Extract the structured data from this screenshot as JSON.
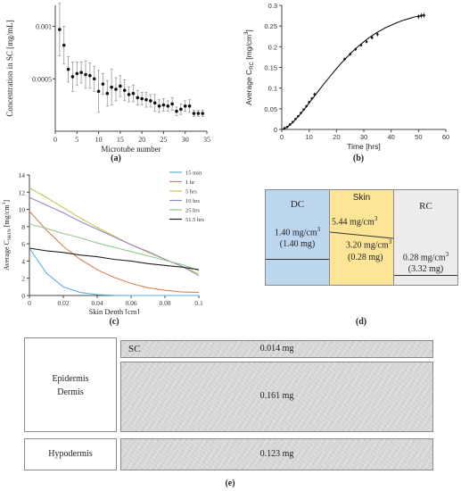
{
  "chart_data": [
    {
      "type": "scatter",
      "panel": "(a)",
      "xlabel": "Microtube number",
      "ylabel": "Concentration in SC [mg/mL]",
      "xlim": [
        0,
        35
      ],
      "ylim": [
        0,
        0.0012
      ],
      "xticks": [
        0,
        5,
        10,
        15,
        20,
        25,
        30,
        35
      ],
      "yticks": [
        0.0005,
        0.001
      ],
      "ytick_labels": [
        "0.0005",
        "0.001"
      ],
      "x": [
        1,
        2,
        3,
        4,
        5,
        6,
        7,
        8,
        9,
        10,
        11,
        12,
        13,
        14,
        15,
        16,
        17,
        18,
        19,
        20,
        21,
        22,
        23,
        24,
        25,
        26,
        27,
        28,
        29,
        30,
        31,
        32,
        33,
        34
      ],
      "y": [
        0.00097,
        0.00082,
        0.00059,
        0.00052,
        0.00055,
        0.00056,
        0.00054,
        0.00053,
        0.0005,
        0.00038,
        0.00045,
        0.00036,
        0.00042,
        0.0004,
        0.00043,
        0.00039,
        0.00035,
        0.00036,
        0.00032,
        0.00031,
        0.0003,
        0.00029,
        0.00027,
        0.00024,
        0.00025,
        0.00024,
        0.00026,
        0.00019,
        0.00021,
        0.00024,
        0.00024,
        0.00017,
        0.00017,
        0.00017
      ],
      "err": [
        0.00025,
        0.00018,
        0.00012,
        0.00014,
        0.00011,
        0.0001,
        0.00013,
        0.00012,
        0.00012,
        0.0002,
        0.0001,
        0.00012,
        0.00017,
        0.00011,
        0.0001,
        0.0001,
        7e-05,
        8e-05,
        7e-05,
        6e-05,
        7e-05,
        6e-05,
        8e-05,
        6e-05,
        6e-05,
        5e-05,
        6e-05,
        4e-05,
        5e-05,
        5e-05,
        6e-05,
        3e-05,
        3e-05,
        3e-05
      ]
    },
    {
      "type": "line",
      "panel": "(b)",
      "xlabel": "Time  [hrs]",
      "ylabel_main": "Average C",
      "ylabel_sub": "RC",
      "ylabel_unit": "[mg/cm",
      "ylabel_sup": "3",
      "ylabel_end": "]",
      "xlim": [
        0,
        60
      ],
      "ylim": [
        0,
        0.3
      ],
      "xticks": [
        0,
        10,
        20,
        30,
        40,
        50,
        60
      ],
      "yticks": [
        0,
        0.05,
        0.1,
        0.15,
        0.2,
        0.25,
        0.3
      ],
      "ytick_labels": [
        "0",
        "0.05",
        "0.1",
        "0.15",
        "0.2",
        "0.25",
        "0.3"
      ],
      "fit_x": [
        0,
        1,
        2,
        3,
        4,
        5,
        6,
        7,
        8,
        9,
        10,
        12,
        14,
        16,
        18,
        20,
        22,
        24,
        26,
        28,
        30,
        32,
        34,
        36,
        38,
        40,
        42,
        44,
        46,
        48,
        50,
        52
      ],
      "fit_y": [
        0,
        0.002,
        0.006,
        0.011,
        0.017,
        0.024,
        0.031,
        0.039,
        0.047,
        0.055,
        0.064,
        0.081,
        0.098,
        0.115,
        0.131,
        0.147,
        0.162,
        0.176,
        0.189,
        0.201,
        0.212,
        0.222,
        0.231,
        0.239,
        0.246,
        0.252,
        0.258,
        0.263,
        0.267,
        0.271,
        0.274,
        0.277
      ],
      "points_x": [
        1,
        2,
        3,
        4,
        5,
        6,
        7,
        8,
        9,
        10,
        11,
        12,
        23,
        25,
        27,
        29,
        31,
        33,
        35,
        50,
        51,
        52
      ],
      "points_y": [
        0.003,
        0.006,
        0.012,
        0.018,
        0.025,
        0.032,
        0.04,
        0.048,
        0.056,
        0.066,
        0.075,
        0.085,
        0.17,
        0.182,
        0.194,
        0.204,
        0.212,
        0.222,
        0.23,
        0.273,
        0.275,
        0.276
      ],
      "points_err": [
        0.001,
        0.001,
        0.001,
        0.002,
        0.002,
        0.002,
        0.002,
        0.003,
        0.003,
        0.003,
        0.003,
        0.004,
        0.004,
        0.004,
        0.004,
        0.004,
        0.004,
        0.004,
        0.005,
        0.006,
        0.006,
        0.006
      ]
    },
    {
      "type": "line",
      "panel": "(c)",
      "xlabel": "Skin Depth [cm]",
      "ylabel_main": "Average C",
      "ylabel_sub": "SKIN",
      "ylabel_unit": "[mg/cm",
      "ylabel_sup": "3",
      "ylabel_end": "]",
      "xlim": [
        0,
        0.1
      ],
      "ylim": [
        0,
        14
      ],
      "xticks": [
        0,
        0.02,
        0.04,
        0.06,
        0.08,
        0.1
      ],
      "xtick_labels": [
        "0",
        "0.02",
        "0.04",
        "0.06",
        "0.08",
        "0.1"
      ],
      "yticks": [
        0,
        2,
        4,
        6,
        8,
        10,
        12,
        14
      ],
      "x": [
        0,
        0.01,
        0.02,
        0.03,
        0.04,
        0.05,
        0.06,
        0.07,
        0.08,
        0.09,
        0.1
      ],
      "series": [
        {
          "name": "15 min",
          "color": "#5aaed8",
          "values": [
            5.5,
            2.6,
            1.0,
            0.35,
            0.1,
            0.02,
            0.0,
            0.0,
            0.0,
            0.0,
            0.0
          ]
        },
        {
          "name": "1 hr",
          "color": "#d9825b",
          "values": [
            9.8,
            7.6,
            5.7,
            4.2,
            3.0,
            2.1,
            1.4,
            0.9,
            0.6,
            0.4,
            0.35
          ]
        },
        {
          "name": "5 hrs",
          "color": "#c9c55a",
          "values": [
            12.5,
            11.4,
            10.2,
            9.0,
            7.9,
            6.9,
            5.9,
            5.0,
            4.2,
            3.4,
            2.5
          ]
        },
        {
          "name": "10 hrs",
          "color": "#9b85c4",
          "values": [
            11.4,
            10.5,
            9.6,
            8.6,
            7.7,
            6.8,
            5.9,
            5.1,
            4.2,
            3.4,
            2.3
          ]
        },
        {
          "name": "25 hrs",
          "color": "#8fcc8a",
          "values": [
            8.3,
            7.8,
            7.2,
            6.7,
            6.1,
            5.6,
            5.1,
            4.6,
            4.1,
            3.6,
            2.9
          ]
        },
        {
          "name": "51.5 hrs",
          "color": "#222222",
          "values": [
            5.5,
            5.2,
            5.0,
            4.7,
            4.5,
            4.2,
            4.0,
            3.7,
            3.5,
            3.3,
            3.0
          ]
        }
      ]
    }
  ],
  "panel_labels": {
    "a": "(a)",
    "b": "(b)",
    "c": "(c)",
    "d": "(d)",
    "e": "(e)"
  },
  "diagram_d": {
    "dc_title": "DC",
    "dc_conc": "1.40 mg/cm",
    "dc_sup": "3",
    "dc_mass": "(1.40 mg)",
    "skin_title": "Skin",
    "skin_conc_top": "5.44 mg/cm",
    "skin_sup_top": "3",
    "skin_conc_bottom": "3.20 mg/cm",
    "skin_sup_bottom": "3",
    "skin_mass": "(0.28 mg)",
    "rc_title": "RC",
    "rc_conc": "0.28 mg/cm",
    "rc_sup": "3",
    "rc_mass": "(3.32 mg)",
    "colors": {
      "dc": "#bcd6ee",
      "skin": "#fde598",
      "rc": "#ececec"
    }
  },
  "diagram_e": {
    "sc_label": "SC",
    "sc_value": "0.014 mg",
    "epidermis_label": "Epidermis",
    "dermis_label": "Dermis",
    "dermis_value": "0.161 mg",
    "hypodermis_label": "Hypodermis",
    "hypodermis_value": "0.123 mg"
  }
}
